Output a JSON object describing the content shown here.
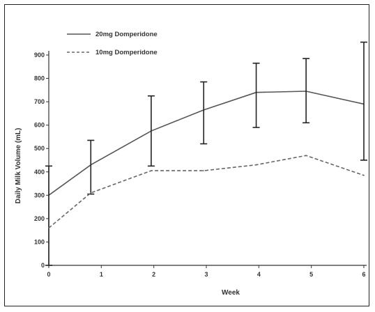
{
  "chart_data": {
    "type": "line",
    "xlabel": "Week",
    "ylabel": "Daily Milk Volume (mL)",
    "xlim": [
      0,
      6
    ],
    "ylim": [
      0,
      900
    ],
    "x_ticks": [
      "0",
      "1",
      "2",
      "3",
      "4",
      "5",
      "6"
    ],
    "y_ticks": [
      "0",
      "100",
      "200",
      "300",
      "400",
      "500",
      "600",
      "700",
      "800",
      "900"
    ],
    "legend_position": "top-left",
    "series": [
      {
        "name": "20mg Domperidone",
        "style": "solid",
        "color": "#555555",
        "x": [
          0,
          0.8,
          1.95,
          2.95,
          3.95,
          4.9,
          6
        ],
        "y": [
          300,
          430,
          575,
          665,
          740,
          745,
          690
        ],
        "error_low": [
          0,
          305,
          425,
          520,
          590,
          610,
          450
        ],
        "error_high": [
          425,
          535,
          725,
          785,
          865,
          885,
          955
        ]
      },
      {
        "name": "10mg Domperidone",
        "style": "dashed",
        "color": "#666666",
        "x": [
          0,
          0.8,
          1.95,
          2.95,
          3.95,
          4.9,
          6
        ],
        "y": [
          160,
          310,
          405,
          405,
          430,
          470,
          385
        ]
      }
    ]
  }
}
